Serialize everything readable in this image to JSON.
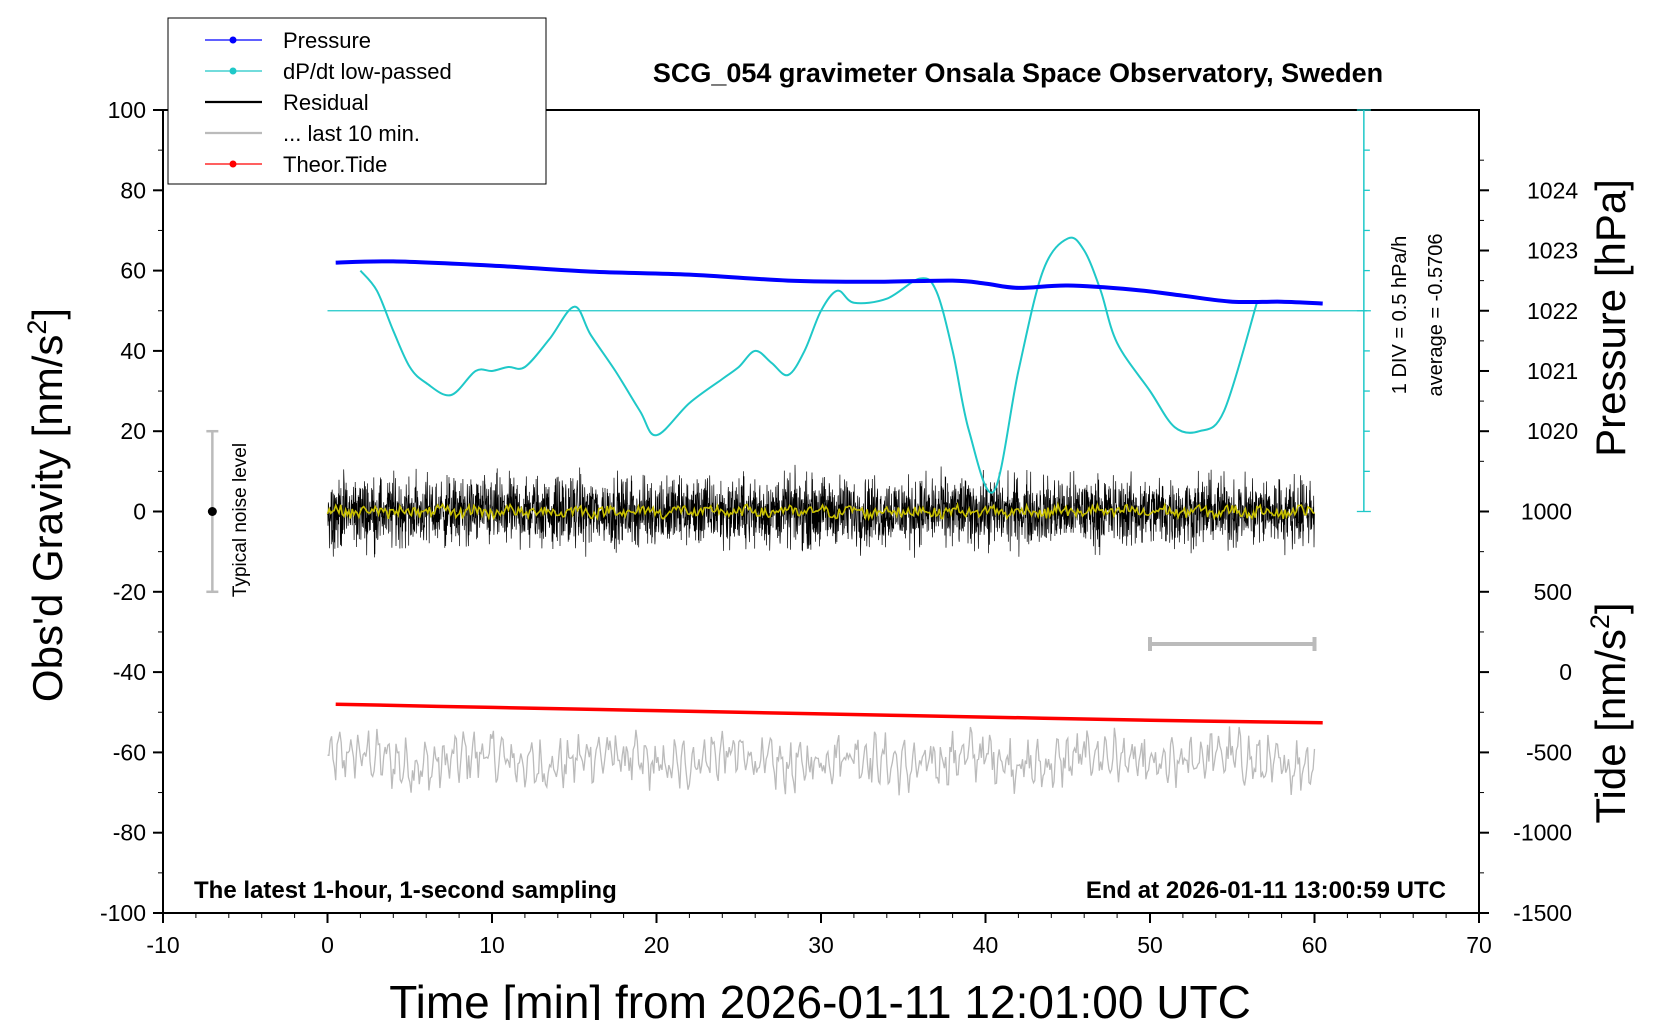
{
  "title": "SCG_054 gravimeter Onsala Space Observatory, Sweden",
  "footer_left": "The latest 1-hour, 1-second sampling",
  "footer_right": "End at 2026-01-11 13:00:59 UTC",
  "noise_label": "Typical noise level",
  "div_label": "1 DIV = 0.5 hPa/h",
  "average_label": "average = -0.5706",
  "colors": {
    "pressure": "#0000ff",
    "dpdt": "#1fc8c8",
    "residual": "#000000",
    "last10": "#bbbbbb",
    "tide": "#ff0000",
    "residual_smooth": "#c8c000"
  },
  "legend": [
    {
      "label": "Pressure",
      "color": "#0000ff",
      "marker": true
    },
    {
      "label": "dP/dt low-passed",
      "color": "#1fc8c8",
      "marker": true
    },
    {
      "label": "Residual",
      "color": "#000000",
      "marker": false
    },
    {
      "label": "... last 10 min.",
      "color": "#bbbbbb",
      "marker": false
    },
    {
      "label": "Theor.Tide",
      "color": "#ff0000",
      "marker": true
    }
  ],
  "chart_data": {
    "type": "line",
    "xlabel": "Time [min] from 2026-01-11 12:01:00 UTC",
    "ylabel_left": "Obs'd Gravity [nm/s",
    "ylabel_left_sup": "2",
    "ylabel_left_close": "]",
    "ylabel_pressure": "Pressure [hPa]",
    "ylabel_tide": "Tide [nm/s",
    "ylabel_tide_sup": "2",
    "ylabel_tide_close": "]",
    "xlim": [
      -10,
      70
    ],
    "ylim": [
      -100,
      100
    ],
    "x_ticks": [
      -10,
      0,
      10,
      20,
      30,
      40,
      50,
      60,
      70
    ],
    "y_ticks": [
      -100,
      -80,
      -60,
      -40,
      -20,
      0,
      20,
      40,
      60,
      80,
      100
    ],
    "pressure_axis": {
      "ticks": [
        1020,
        1021,
        1022,
        1023,
        1024
      ],
      "reference": [
        [
          1020,
          20
        ],
        [
          1024,
          80
        ]
      ]
    },
    "tide_axis": {
      "ticks": [
        -1500,
        -1000,
        -500,
        0,
        500,
        1000
      ],
      "reference": [
        [
          -1500,
          -100
        ],
        [
          1000,
          0
        ]
      ]
    },
    "noise_bar": {
      "x": -7,
      "y_low": -20,
      "y_high": 20
    },
    "last10_bar": {
      "x_start": 50,
      "x_end": 60,
      "y": -33
    },
    "dpdt_zero_line": 50,
    "dpdt_scale_x": 63,
    "series": [
      {
        "name": "Pressure",
        "unit": "hPa",
        "x": [
          0.5,
          4,
          10,
          16,
          22,
          28,
          33,
          38,
          40,
          42,
          45,
          49,
          52,
          55,
          58,
          60.5
        ],
        "y": [
          1022.8,
          1022.82,
          1022.75,
          1022.65,
          1022.6,
          1022.5,
          1022.48,
          1022.5,
          1022.45,
          1022.38,
          1022.42,
          1022.35,
          1022.25,
          1022.15,
          1022.15,
          1022.12
        ]
      },
      {
        "name": "dP/dt low-passed",
        "unit": "nm/s2-scale",
        "x": [
          2,
          3,
          4,
          5,
          6,
          7.5,
          9,
          10,
          11,
          12,
          13.5,
          15,
          16,
          17.5,
          19,
          20,
          22,
          24,
          25,
          26,
          27,
          28,
          29,
          30,
          31,
          32,
          34,
          36,
          37,
          38,
          39,
          40.5,
          42,
          43.5,
          45,
          46,
          47,
          48,
          50,
          51.5,
          53,
          54.5,
          56.5
        ],
        "y": [
          60,
          55,
          45,
          36,
          32,
          29,
          35,
          35,
          36,
          36,
          43,
          51,
          44,
          35,
          25,
          19,
          27,
          33,
          36,
          40,
          37,
          34,
          40,
          50,
          55,
          52,
          53,
          58,
          55,
          40,
          20,
          5,
          35,
          60,
          68,
          65,
          55,
          42,
          30,
          21,
          20,
          25,
          52
        ]
      },
      {
        "name": "Residual",
        "unit": "nm/s2",
        "x_start": 0,
        "x_end": 60,
        "amplitude": 8
      },
      {
        "name": "... last 10 min.",
        "unit": "nm/s2",
        "x_start": 0,
        "x_end": 60,
        "center": -62,
        "amplitude": 6
      },
      {
        "name": "Theor.Tide",
        "unit": "nm/s2",
        "x": [
          0.5,
          10,
          20,
          30,
          40,
          50,
          55,
          60.5
        ],
        "y": [
          -48,
          -48.8,
          -49.6,
          -50.4,
          -51.2,
          -52,
          -52.3,
          -52.6
        ]
      }
    ]
  }
}
